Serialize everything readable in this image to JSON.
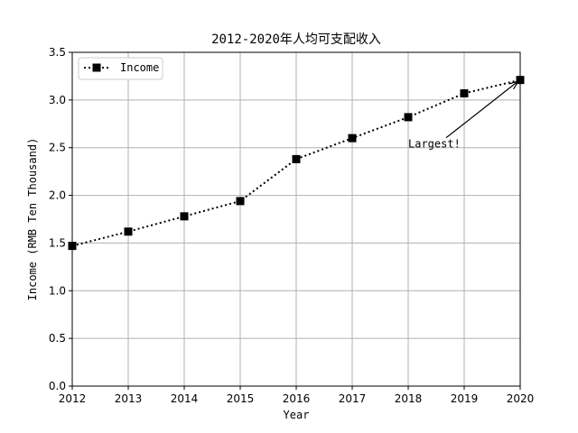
{
  "chart_data": {
    "type": "line",
    "title": "2012-2020年人均可支配收入",
    "xlabel": "Year",
    "ylabel": "Income (RMB Ten Thousand)",
    "x": [
      2012,
      2013,
      2014,
      2015,
      2016,
      2017,
      2018,
      2019,
      2020
    ],
    "x_tick_labels": [
      "2012",
      "2013",
      "2014",
      "2015",
      "2016",
      "2017",
      "2018",
      "2019",
      "2020"
    ],
    "y_tick_labels": [
      "0.0",
      "0.5",
      "1.0",
      "1.5",
      "2.0",
      "2.5",
      "3.0",
      "3.5"
    ],
    "y_ticks": [
      0.0,
      0.5,
      1.0,
      1.5,
      2.0,
      2.5,
      3.0,
      3.5
    ],
    "xlim": [
      2012,
      2020
    ],
    "ylim": [
      0,
      3.5
    ],
    "grid": true,
    "legend_position": "top-left",
    "series": [
      {
        "name": "Income",
        "values": [
          1.47,
          1.62,
          1.78,
          1.94,
          2.38,
          2.6,
          2.82,
          3.07,
          3.21
        ],
        "color": "#000000",
        "line_style": "dotted",
        "marker": "square"
      }
    ],
    "annotations": [
      {
        "text": "Largest!",
        "text_x": 2018,
        "text_y": 2.5,
        "arrow_to_x": 2020,
        "arrow_to_y": 3.21
      }
    ]
  }
}
